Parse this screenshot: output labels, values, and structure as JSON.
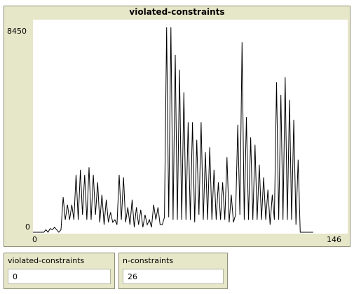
{
  "plot": {
    "title": "violated-constraints",
    "x_min_label": "0",
    "x_max_label": "146",
    "y_min_label": "0",
    "y_max_label": "8450"
  },
  "monitors": [
    {
      "label": "violated-constraints",
      "value": "0"
    },
    {
      "label": "n-constraints",
      "value": "26"
    }
  ],
  "chart_data": {
    "type": "line",
    "title": "violated-constraints",
    "xlim": [
      0,
      146
    ],
    "ylim": [
      0,
      8450
    ],
    "line_color": "#000000",
    "points": [
      [
        0,
        0
      ],
      [
        5,
        0
      ],
      [
        6,
        100
      ],
      [
        7,
        0
      ],
      [
        8,
        150
      ],
      [
        9,
        100
      ],
      [
        10,
        200
      ],
      [
        11,
        100
      ],
      [
        12,
        0
      ],
      [
        13,
        100
      ],
      [
        14,
        1400
      ],
      [
        15,
        500
      ],
      [
        16,
        1100
      ],
      [
        17,
        500
      ],
      [
        18,
        1100
      ],
      [
        19,
        500
      ],
      [
        20,
        2300
      ],
      [
        21,
        500
      ],
      [
        22,
        2500
      ],
      [
        23,
        700
      ],
      [
        24,
        2300
      ],
      [
        25,
        500
      ],
      [
        26,
        2600
      ],
      [
        27,
        500
      ],
      [
        28,
        2300
      ],
      [
        29,
        700
      ],
      [
        30,
        2000
      ],
      [
        31,
        400
      ],
      [
        32,
        1500
      ],
      [
        33,
        300
      ],
      [
        34,
        1300
      ],
      [
        35,
        400
      ],
      [
        36,
        800
      ],
      [
        37,
        400
      ],
      [
        38,
        500
      ],
      [
        39,
        300
      ],
      [
        40,
        2300
      ],
      [
        41,
        500
      ],
      [
        42,
        2200
      ],
      [
        43,
        400
      ],
      [
        44,
        1000
      ],
      [
        45,
        300
      ],
      [
        46,
        1300
      ],
      [
        47,
        200
      ],
      [
        48,
        1000
      ],
      [
        49,
        300
      ],
      [
        50,
        900
      ],
      [
        51,
        200
      ],
      [
        52,
        700
      ],
      [
        53,
        300
      ],
      [
        54,
        500
      ],
      [
        55,
        200
      ],
      [
        56,
        1100
      ],
      [
        57,
        500
      ],
      [
        58,
        1000
      ],
      [
        59,
        300
      ],
      [
        60,
        300
      ],
      [
        61,
        600
      ],
      [
        62,
        8200
      ],
      [
        63,
        600
      ],
      [
        64,
        8200
      ],
      [
        65,
        500
      ],
      [
        66,
        7100
      ],
      [
        67,
        500
      ],
      [
        68,
        6500
      ],
      [
        69,
        500
      ],
      [
        70,
        5600
      ],
      [
        71,
        500
      ],
      [
        72,
        4400
      ],
      [
        73,
        500
      ],
      [
        74,
        4400
      ],
      [
        75,
        400
      ],
      [
        76,
        3700
      ],
      [
        77,
        700
      ],
      [
        78,
        4400
      ],
      [
        79,
        500
      ],
      [
        80,
        3200
      ],
      [
        81,
        500
      ],
      [
        82,
        3400
      ],
      [
        83,
        500
      ],
      [
        84,
        2500
      ],
      [
        85,
        500
      ],
      [
        86,
        2000
      ],
      [
        87,
        500
      ],
      [
        88,
        2000
      ],
      [
        89,
        500
      ],
      [
        90,
        3000
      ],
      [
        91,
        400
      ],
      [
        92,
        1500
      ],
      [
        93,
        400
      ],
      [
        94,
        700
      ],
      [
        95,
        4300
      ],
      [
        96,
        700
      ],
      [
        97,
        7600
      ],
      [
        98,
        500
      ],
      [
        99,
        4600
      ],
      [
        100,
        500
      ],
      [
        101,
        3800
      ],
      [
        102,
        500
      ],
      [
        103,
        3500
      ],
      [
        104,
        500
      ],
      [
        105,
        2700
      ],
      [
        106,
        500
      ],
      [
        107,
        2200
      ],
      [
        108,
        500
      ],
      [
        109,
        1700
      ],
      [
        110,
        300
      ],
      [
        111,
        1500
      ],
      [
        112,
        500
      ],
      [
        113,
        6000
      ],
      [
        114,
        500
      ],
      [
        115,
        5500
      ],
      [
        116,
        500
      ],
      [
        117,
        6200
      ],
      [
        118,
        500
      ],
      [
        119,
        5300
      ],
      [
        120,
        500
      ],
      [
        121,
        4500
      ],
      [
        122,
        300
      ],
      [
        123,
        2900
      ],
      [
        124,
        0
      ],
      [
        130,
        0
      ]
    ]
  }
}
